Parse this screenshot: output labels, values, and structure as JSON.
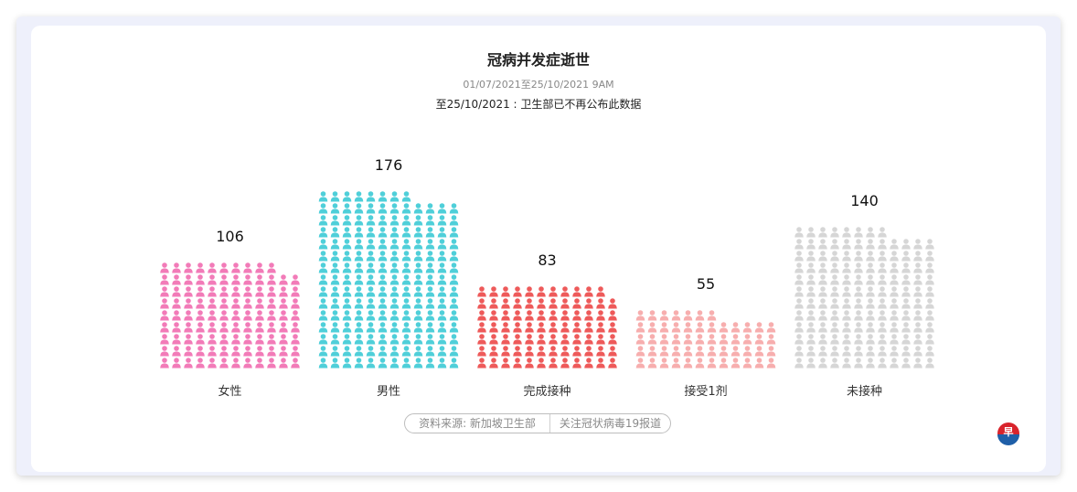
{
  "header": {
    "title": "冠病并发症逝世",
    "subtitle": "01/07/2021至25/10/2021 9AM",
    "note": "至25/10/2021 : 卫生部已不再公布此数据"
  },
  "chart_data": {
    "type": "bar",
    "style": "pictogram",
    "categories": [
      "女性",
      "男性",
      "完成接种",
      "接受1剂",
      "未接种"
    ],
    "values": [
      106,
      176,
      83,
      55,
      140
    ],
    "colors": [
      "#f27bb8",
      "#4fcfd9",
      "#ee5a5a",
      "#f7aeae",
      "#d6d6d6"
    ],
    "icon": "person-icon",
    "title": "冠病并发症逝世"
  },
  "footer": {
    "source_label": "资料来源: 新加坡卫生部",
    "follow_label": "关注冠状病毒19报道"
  },
  "brand": {
    "logo_icon": "zaobao-logo-icon",
    "colors": [
      "#d9242c",
      "#1f5fa8"
    ]
  }
}
